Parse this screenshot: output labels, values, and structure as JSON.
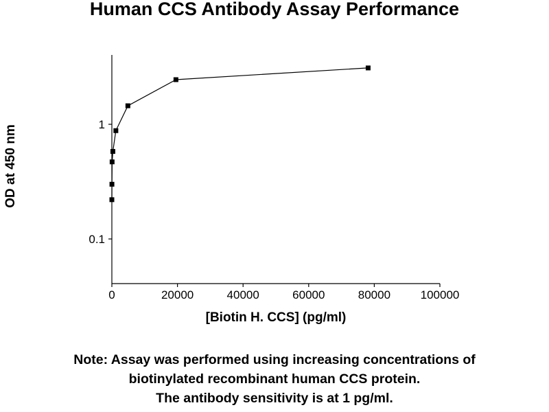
{
  "chart_data": {
    "type": "line",
    "title": "Human CCS Antibody Assay Performance",
    "xlabel": "[Biotin H. CCS] (pg/ml)",
    "ylabel": "OD at 450 nm",
    "xlim": [
      0,
      100000
    ],
    "ylim": [
      0.05,
      4
    ],
    "y_scale": "log",
    "x_ticks": [
      0,
      20000,
      40000,
      60000,
      80000,
      100000
    ],
    "x_tick_labels": [
      "0",
      "20000",
      "40000",
      "60000",
      "80000",
      "100000"
    ],
    "y_ticks": [
      0.1,
      1
    ],
    "y_tick_labels": [
      "0.1",
      "1"
    ],
    "grid": false,
    "marker": "square",
    "color": "#000000",
    "series": [
      {
        "x": [
          0,
          19,
          76,
          305,
          1221,
          4883,
          19531,
          78125
        ],
        "y": [
          0.22,
          0.3,
          0.47,
          0.58,
          0.88,
          1.45,
          2.45,
          3.1
        ]
      }
    ]
  },
  "note": {
    "lines": [
      "Note: Assay was performed using increasing concentrations of",
      "biotinylated recombinant human CCS protein.",
      "The antibody sensitivity is at 1 pg/ml."
    ]
  }
}
